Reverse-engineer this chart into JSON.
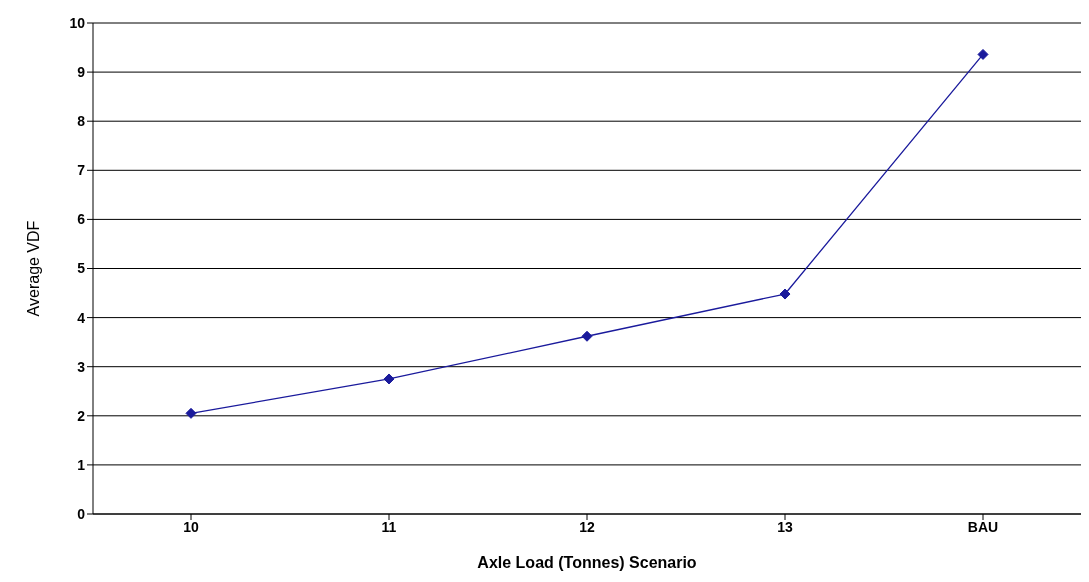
{
  "chart_data": {
    "type": "line",
    "xlabel": "Axle Load (Tonnes) Scenario",
    "ylabel": "Average VDF",
    "categories": [
      "10",
      "11",
      "12",
      "13",
      "BAU"
    ],
    "series": [
      {
        "color": "#1a1a9c",
        "values": [
          2.05,
          2.75,
          3.62,
          4.48,
          9.36
        ]
      }
    ],
    "ylim": [
      0,
      10
    ],
    "yticks": [
      0,
      1,
      2,
      3,
      4,
      5,
      6,
      7,
      8,
      9,
      10
    ],
    "grid": "y",
    "marker": "diamond",
    "line_style": "solid",
    "legend": false
  }
}
